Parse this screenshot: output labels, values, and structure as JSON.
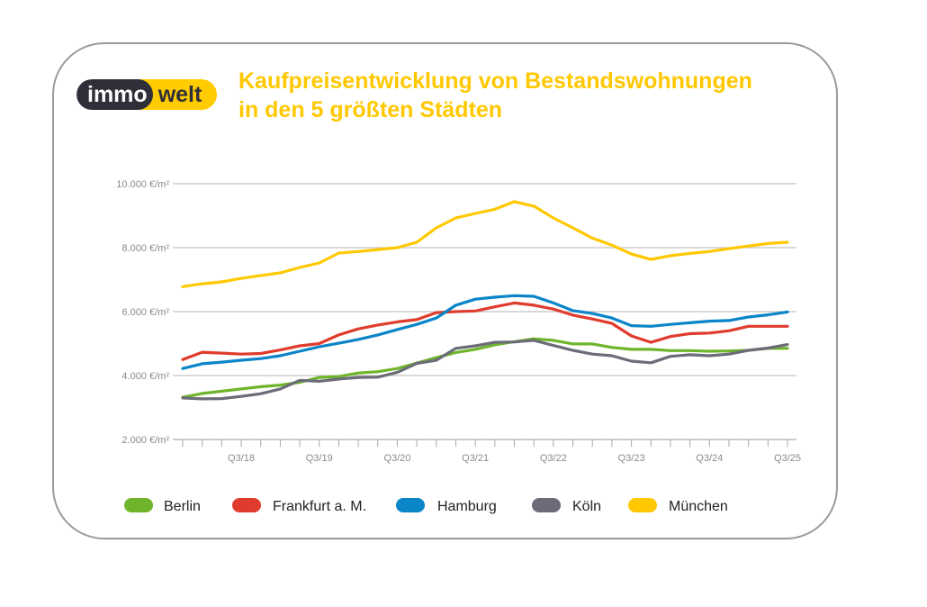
{
  "logo": {
    "part1": "immo",
    "part2": "welt"
  },
  "title": {
    "line1": "Kaufpreisentwicklung von Bestandswohnungen",
    "line2": "in den 5 größten Städten"
  },
  "chart_data": {
    "type": "line",
    "title": "Kaufpreisentwicklung von Bestandswohnungen in den 5 größten Städten",
    "x": [
      "Q4/17",
      "Q1/18",
      "Q2/18",
      "Q3/18",
      "Q4/18",
      "Q1/19",
      "Q2/19",
      "Q3/19",
      "Q4/19",
      "Q1/20",
      "Q2/20",
      "Q3/20",
      "Q4/20",
      "Q1/21",
      "Q2/21",
      "Q3/21",
      "Q4/21",
      "Q1/22",
      "Q2/22",
      "Q3/22",
      "Q4/22",
      "Q1/23",
      "Q2/23",
      "Q3/23",
      "Q4/23",
      "Q1/24",
      "Q2/24",
      "Q3/24",
      "Q4/24",
      "Q1/25",
      "Q2/25",
      "Q3/25"
    ],
    "x_tick_labels": [
      "Q3/18",
      "Q3/19",
      "Q3/20",
      "Q3/21",
      "Q3/22",
      "Q3/23",
      "Q3/24",
      "Q3/25"
    ],
    "y_ticks": [
      2000,
      4000,
      6000,
      8000,
      10000
    ],
    "y_tick_labels": [
      "2.000 €/m²",
      "4.000 €/m²",
      "6.000 €/m²",
      "8.000 €/m²",
      "10.000 €/m²"
    ],
    "ylim": [
      2000,
      10000
    ],
    "grid": "horizontal",
    "legend": "bottom",
    "series": [
      {
        "name": "Berlin",
        "color": "#6fb52c",
        "values": [
          3320,
          3440,
          3510,
          3580,
          3650,
          3700,
          3790,
          3940,
          3970,
          4080,
          4120,
          4220,
          4390,
          4560,
          4720,
          4820,
          4960,
          5060,
          5150,
          5100,
          4990,
          4990,
          4880,
          4820,
          4820,
          4780,
          4780,
          4760,
          4770,
          4790,
          4850,
          4850
        ]
      },
      {
        "name": "Frankfurt a. M.",
        "color": "#e03c2d",
        "values": [
          4500,
          4730,
          4700,
          4670,
          4690,
          4800,
          4930,
          5000,
          5270,
          5460,
          5580,
          5680,
          5750,
          5970,
          6000,
          6020,
          6150,
          6270,
          6200,
          6080,
          5890,
          5770,
          5630,
          5240,
          5040,
          5220,
          5310,
          5330,
          5400,
          5540,
          5540,
          5540
        ]
      },
      {
        "name": "Hamburg",
        "color": "#0a85c8",
        "values": [
          4220,
          4370,
          4420,
          4480,
          4530,
          4620,
          4760,
          4900,
          5010,
          5130,
          5270,
          5440,
          5600,
          5800,
          6200,
          6390,
          6450,
          6500,
          6480,
          6270,
          6030,
          5940,
          5800,
          5560,
          5540,
          5600,
          5650,
          5700,
          5720,
          5830,
          5900,
          5990
        ]
      },
      {
        "name": "Köln",
        "color": "#6c6c78",
        "values": [
          3300,
          3270,
          3280,
          3350,
          3430,
          3580,
          3850,
          3820,
          3890,
          3940,
          3950,
          4100,
          4380,
          4480,
          4850,
          4930,
          5040,
          5050,
          5100,
          4940,
          4790,
          4670,
          4620,
          4450,
          4400,
          4600,
          4650,
          4620,
          4670,
          4790,
          4860,
          4970
        ]
      },
      {
        "name": "München",
        "color": "#ffc800",
        "values": [
          6780,
          6870,
          6930,
          7040,
          7130,
          7210,
          7380,
          7520,
          7830,
          7880,
          7940,
          8000,
          8170,
          8620,
          8930,
          9070,
          9200,
          9440,
          9300,
          8930,
          8620,
          8300,
          8080,
          7800,
          7630,
          7750,
          7820,
          7880,
          7970,
          8050,
          8130,
          8170
        ]
      }
    ]
  }
}
